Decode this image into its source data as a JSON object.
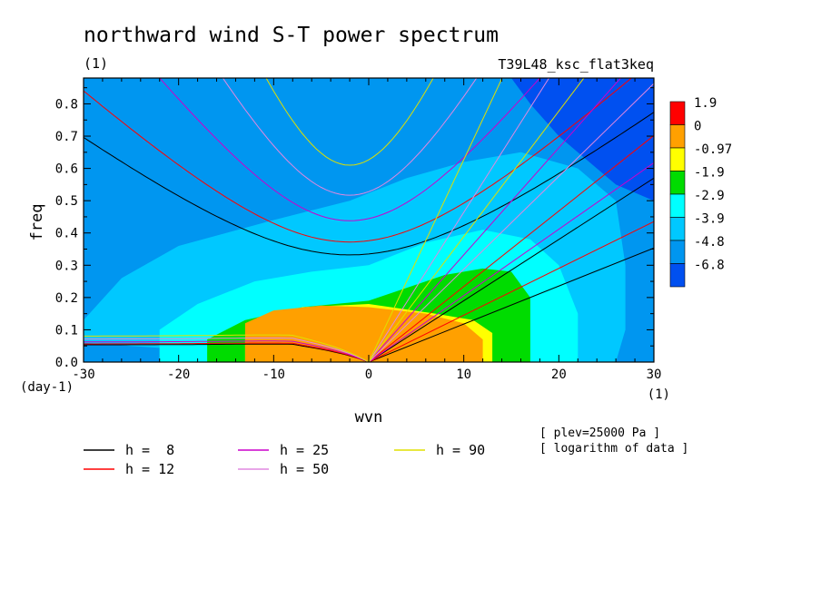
{
  "title": "northward wind S-T power spectrum",
  "title_units": "(1)",
  "run_name": "T39L48_ksc_flat3keq",
  "notes": [
    "[ plev=25000 Pa ]",
    "[ logarithm of data ]"
  ],
  "colors": {
    "fill_levels": [
      "#0050f0",
      "#0096f0",
      "#00c8ff",
      "#00ffff",
      "#00dc00",
      "#ffff00",
      "#ffa000",
      "#ff0000"
    ],
    "h8": "#000000",
    "h12": "#ff0000",
    "h25": "#cc00cc",
    "h50": "#e088e0",
    "h90": "#e0e000"
  },
  "chart_data": {
    "type": "heatmap",
    "xlabel": "wvn",
    "xunits": "(1)",
    "ylabel": "freq",
    "yunits": "(day-1)",
    "xlim": [
      -30,
      30
    ],
    "ylim": [
      0,
      0.88
    ],
    "xticks": [
      -30,
      -20,
      -10,
      0,
      10,
      20,
      30
    ],
    "yticks": [
      0.0,
      0.1,
      0.2,
      0.3,
      0.4,
      0.5,
      0.6,
      0.7,
      0.8
    ],
    "colorbar": {
      "labels": [
        "1.9",
        "0",
        "-0.97",
        "-1.9",
        "-2.9",
        "-3.9",
        "-4.8",
        "-6.8"
      ],
      "bands": [
        {
          "range": [
            0,
            1.9
          ],
          "color": "#ff0000"
        },
        {
          "range": [
            -0.97,
            0
          ],
          "color": "#ffa000"
        },
        {
          "range": [
            -1.9,
            -0.97
          ],
          "color": "#ffff00"
        },
        {
          "range": [
            -2.9,
            -1.9
          ],
          "color": "#00dc00"
        },
        {
          "range": [
            -3.9,
            -2.9
          ],
          "color": "#00ffff"
        },
        {
          "range": [
            -4.8,
            -3.9
          ],
          "color": "#00c8ff"
        },
        {
          "range": [
            -6.8,
            -4.8
          ],
          "color": "#0096f0"
        },
        {
          "range": [
            -6.8,
            -6.8
          ],
          "color": "#0050f0"
        }
      ]
    },
    "contour_regions": [
      {
        "level": "-4.8",
        "color": "#0096f0",
        "points": [
          [
            -30,
            0.88
          ],
          [
            15,
            0.88
          ],
          [
            17,
            0.8
          ],
          [
            20,
            0.7
          ],
          [
            26,
            0.55
          ],
          [
            30,
            0.5
          ],
          [
            30,
            0.0
          ],
          [
            -30,
            0.0
          ]
        ]
      },
      {
        "level": "-3.9",
        "color": "#00c8ff",
        "points": [
          [
            -30,
            0.06
          ],
          [
            -30,
            0.13
          ],
          [
            -26,
            0.26
          ],
          [
            -20,
            0.36
          ],
          [
            -10,
            0.44
          ],
          [
            -2,
            0.5
          ],
          [
            4,
            0.57
          ],
          [
            10,
            0.62
          ],
          [
            16,
            0.65
          ],
          [
            22,
            0.6
          ],
          [
            26,
            0.5
          ],
          [
            27,
            0.3
          ],
          [
            27,
            0.1
          ],
          [
            26,
            0.0
          ],
          [
            0,
            0.0
          ]
        ]
      },
      {
        "level": "-2.9",
        "color": "#00ffff",
        "points": [
          [
            -22,
            0.0
          ],
          [
            -22,
            0.1
          ],
          [
            -18,
            0.18
          ],
          [
            -12,
            0.25
          ],
          [
            -6,
            0.28
          ],
          [
            0,
            0.3
          ],
          [
            6,
            0.37
          ],
          [
            12,
            0.41
          ],
          [
            17,
            0.38
          ],
          [
            20,
            0.3
          ],
          [
            22,
            0.15
          ],
          [
            22,
            0.0
          ]
        ]
      },
      {
        "level": "-1.9",
        "color": "#00dc00",
        "points": [
          [
            -17,
            0.0
          ],
          [
            -17,
            0.07
          ],
          [
            -13,
            0.13
          ],
          [
            -7,
            0.17
          ],
          [
            0,
            0.19
          ],
          [
            8,
            0.27
          ],
          [
            12,
            0.29
          ],
          [
            15,
            0.28
          ],
          [
            17,
            0.2
          ],
          [
            17,
            0.1
          ],
          [
            17,
            0.0
          ]
        ]
      },
      {
        "level": "-0.97",
        "color": "#ffff00",
        "points": [
          [
            -13,
            0.0
          ],
          [
            -13,
            0.07
          ],
          [
            -10,
            0.14
          ],
          [
            -7,
            0.17
          ],
          [
            0,
            0.18
          ],
          [
            7,
            0.15
          ],
          [
            11,
            0.13
          ],
          [
            13,
            0.09
          ],
          [
            13,
            0.02
          ],
          [
            13,
            0.0
          ]
        ]
      }
    ],
    "series": [
      {
        "name": "h =  8",
        "color": "#000000"
      },
      {
        "name": "h = 12",
        "color": "#ff0000"
      },
      {
        "name": "h = 25",
        "color": "#cc00cc"
      },
      {
        "name": "h = 50",
        "color": "#e088e0"
      },
      {
        "name": "h = 90",
        "color": "#e0e000"
      }
    ],
    "dispersion_curves": {
      "min_freq": [
        0.332,
        0.372,
        0.438,
        0.517,
        0.61
      ],
      "kelvin_slope": [
        0.019,
        0.0234,
        0.0332,
        0.0464,
        0.0627
      ],
      "low_freq_edge": [
        0.053,
        0.056,
        0.062,
        0.071,
        0.08
      ]
    },
    "legend_position": "bottom"
  }
}
